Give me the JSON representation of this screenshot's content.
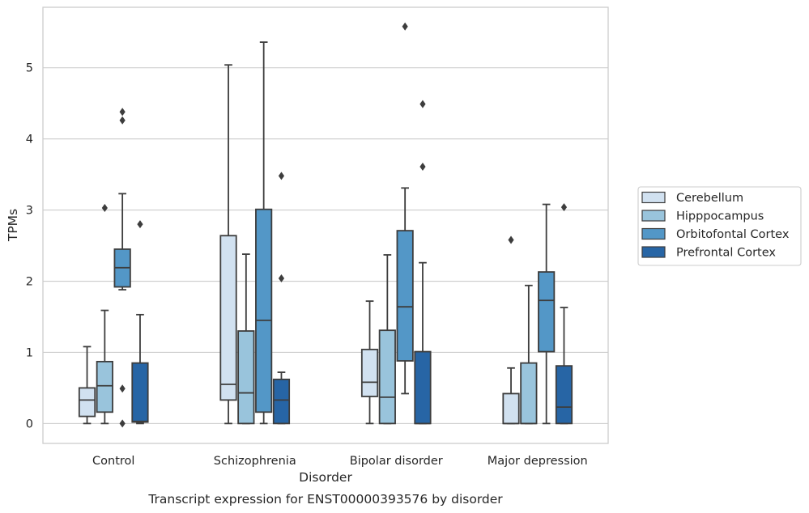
{
  "caption": "Transcript expression for ENST00000393576 by disorder",
  "chart_data": {
    "type": "box",
    "xlabel": "Disorder",
    "ylabel": "TPMs",
    "categories": [
      "Control",
      "Schizophrenia",
      "Bipolar disorder",
      "Major depression"
    ],
    "y_ticks": [
      0,
      1,
      2,
      3,
      4,
      5
    ],
    "ylim": [
      -0.28,
      5.85
    ],
    "grid": "horizontal",
    "legend_position": "right",
    "colors": {
      "Cerebellum": "#d1e1f0",
      "Hipppocampus": "#99c4dc",
      "Orbitofontal Cortex": "#5397c7",
      "Prefrontal Cortex": "#2765a5"
    },
    "series": [
      {
        "name": "Cerebellum",
        "boxes": [
          {
            "whisker_low": 0.0,
            "q1": 0.1,
            "median": 0.33,
            "q3": 0.5,
            "whisker_high": 1.08,
            "outliers": []
          },
          {
            "whisker_low": 0.0,
            "q1": 0.33,
            "median": 0.55,
            "q3": 2.64,
            "whisker_high": 5.04,
            "outliers": []
          },
          {
            "whisker_low": 0.0,
            "q1": 0.38,
            "median": 0.58,
            "q3": 1.04,
            "whisker_high": 1.72,
            "outliers": []
          },
          {
            "whisker_low": 0.0,
            "q1": 0.0,
            "median": 0.0,
            "q3": 0.42,
            "whisker_high": 0.78,
            "outliers": [
              2.58
            ]
          }
        ]
      },
      {
        "name": "Hipppocampus",
        "boxes": [
          {
            "whisker_low": 0.0,
            "q1": 0.16,
            "median": 0.53,
            "q3": 0.87,
            "whisker_high": 1.59,
            "outliers": [
              3.03
            ]
          },
          {
            "whisker_low": 0.0,
            "q1": 0.0,
            "median": 0.43,
            "q3": 1.3,
            "whisker_high": 2.38,
            "outliers": []
          },
          {
            "whisker_low": 0.0,
            "q1": 0.0,
            "median": 0.37,
            "q3": 1.31,
            "whisker_high": 2.37,
            "outliers": []
          },
          {
            "whisker_low": 0.0,
            "q1": 0.0,
            "median": 0.0,
            "q3": 0.85,
            "whisker_high": 1.94,
            "outliers": []
          }
        ]
      },
      {
        "name": "Orbitofontal Cortex",
        "boxes": [
          {
            "whisker_low": 1.88,
            "q1": 1.92,
            "median": 2.19,
            "q3": 2.45,
            "whisker_high": 3.23,
            "outliers": [
              4.38,
              4.26,
              0.49,
              0.0
            ]
          },
          {
            "whisker_low": 0.0,
            "q1": 0.16,
            "median": 1.45,
            "q3": 3.01,
            "whisker_high": 5.36,
            "outliers": []
          },
          {
            "whisker_low": 0.42,
            "q1": 0.88,
            "median": 1.64,
            "q3": 2.71,
            "whisker_high": 3.31,
            "outliers": [
              5.58
            ]
          },
          {
            "whisker_low": 0.0,
            "q1": 1.01,
            "median": 1.73,
            "q3": 2.13,
            "whisker_high": 3.08,
            "outliers": []
          }
        ]
      },
      {
        "name": "Prefrontal Cortex",
        "boxes": [
          {
            "whisker_low": 0.0,
            "q1": 0.02,
            "median": 0.03,
            "q3": 0.85,
            "whisker_high": 1.53,
            "outliers": [
              2.8
            ]
          },
          {
            "whisker_low": 0.0,
            "q1": 0.0,
            "median": 0.33,
            "q3": 0.62,
            "whisker_high": 0.72,
            "outliers": [
              3.48,
              2.04
            ]
          },
          {
            "whisker_low": 0.0,
            "q1": 0.0,
            "median": 0.0,
            "q3": 1.01,
            "whisker_high": 2.26,
            "outliers": [
              4.49,
              3.61
            ]
          },
          {
            "whisker_low": 0.0,
            "q1": 0.0,
            "median": 0.23,
            "q3": 0.81,
            "whisker_high": 1.63,
            "outliers": [
              3.04
            ]
          }
        ]
      }
    ]
  }
}
